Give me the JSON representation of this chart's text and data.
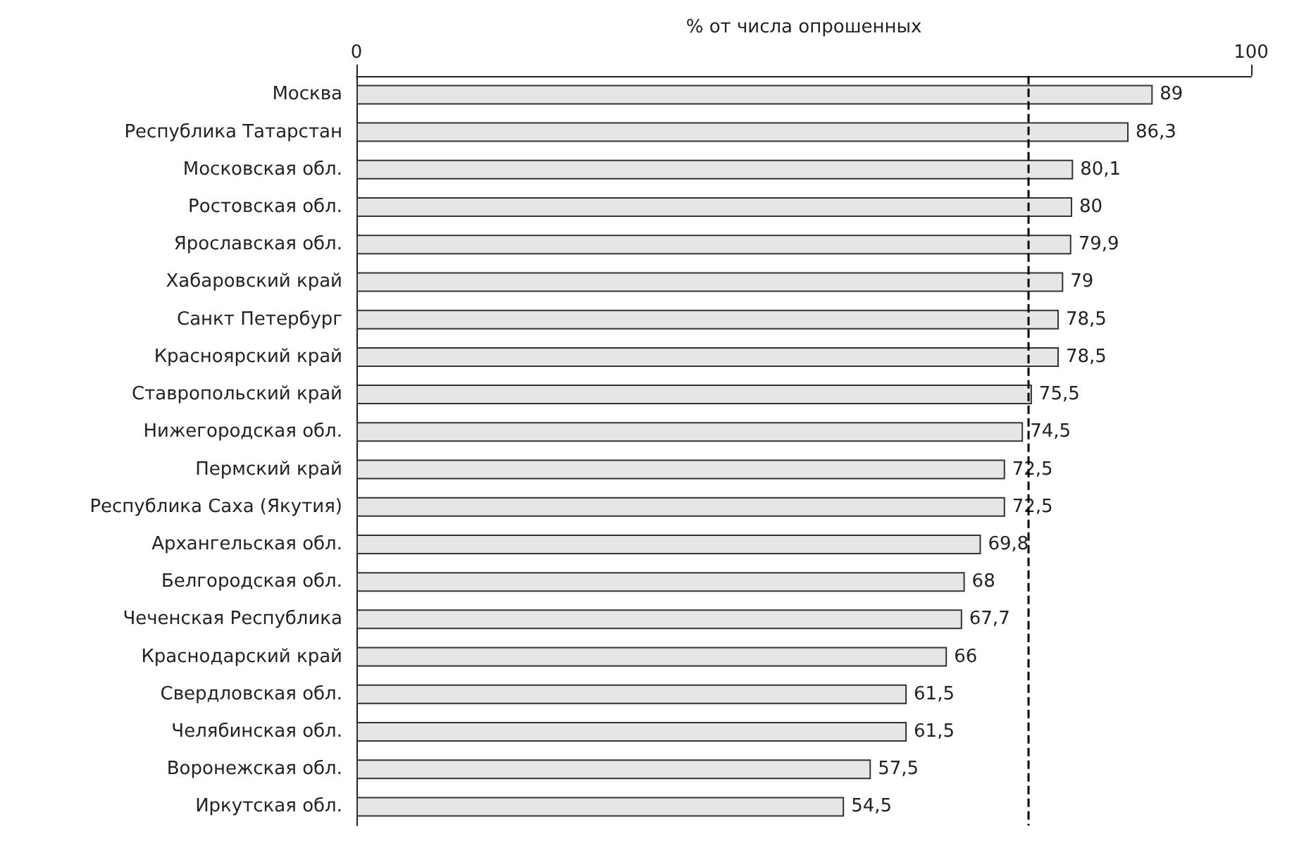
{
  "chart_data": {
    "type": "bar",
    "orientation": "horizontal",
    "xlabel": "% от числа опрошенных",
    "categories": [
      "Москва",
      "Республика Татарстан",
      "Московская обл.",
      "Ростовская обл.",
      "Ярославская обл.",
      "Хабаровский край",
      "Санкт Петербург",
      "Красноярский край",
      "Ставропольский край",
      "Нижегородская обл.",
      "Пермский край",
      "Республика Саха (Якутия)",
      "Архангельская обл.",
      "Белгородская обл.",
      "Чеченская Республика",
      "Краснодарский край",
      "Свердловская обл.",
      "Челябинская обл.",
      "Воронежская обл.",
      "Иркутская обл."
    ],
    "values": [
      89,
      86.3,
      80.1,
      80,
      79.9,
      79,
      78.5,
      78.5,
      75.5,
      74.5,
      72.5,
      72.5,
      69.8,
      68,
      67.7,
      66,
      61.5,
      61.5,
      57.5,
      54.5
    ],
    "value_labels": [
      "89",
      "86,3",
      "80,1",
      "80",
      "79,9",
      "79",
      "78,5",
      "78,5",
      "75,5",
      "74,5",
      "72,5",
      "72,5",
      "69,8",
      "68",
      "67,7",
      "66",
      "61,5",
      "61,5",
      "57,5",
      "54,5"
    ],
    "color": "#e6e6e6",
    "xlim": [
      0,
      100
    ],
    "xticks": [
      0,
      100
    ],
    "grid": false,
    "ref_lines": [
      {
        "axis": "x",
        "value": 75,
        "line_style": "dashed",
        "color": "#000000"
      }
    ]
  }
}
